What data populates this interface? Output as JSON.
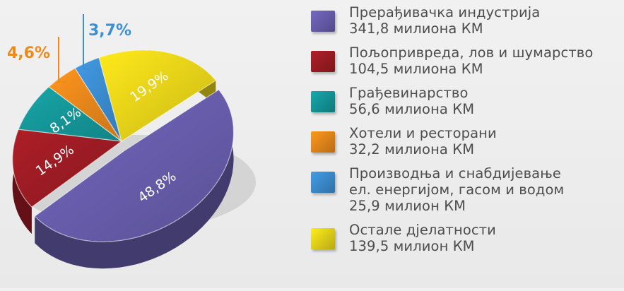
{
  "chart_data": {
    "type": "pie",
    "slices": [
      {
        "label": "Прерађивачка индустрија",
        "amount": "341,8 милиона КМ",
        "value": 48.8,
        "percent_label": "48,8%",
        "color": "#6a5fb0"
      },
      {
        "label": "Пољопривреда, лов и шумарство",
        "amount": "104,5 милиона КМ",
        "value": 14.9,
        "percent_label": "14,9%",
        "color": "#a01c24"
      },
      {
        "label": "Грађевинарство",
        "amount": "56,6 милиона КМ",
        "value": 8.1,
        "percent_label": "8,1%",
        "color": "#159a9c"
      },
      {
        "label": "Хотели и ресторани",
        "amount": "32,2 милиона КМ",
        "value": 4.6,
        "percent_label": "4,6%",
        "color": "#ec8a1c"
      },
      {
        "label": "Производња и снабдијевање ел. енергијом, гасом и водом",
        "label_lines": [
          "Производња и снабдијевање",
          "ел. енергијом, гасом и водом"
        ],
        "amount": "25,9 милион КМ",
        "value": 3.7,
        "percent_label": "3,7%",
        "color": "#3d8fd4"
      },
      {
        "label": "Остале дјелатности",
        "amount": "139,5 милион КМ",
        "value": 19.9,
        "percent_label": "19,9%",
        "color": "#ecd819"
      }
    ],
    "legend_position": "right",
    "style": "3d-exploded"
  }
}
